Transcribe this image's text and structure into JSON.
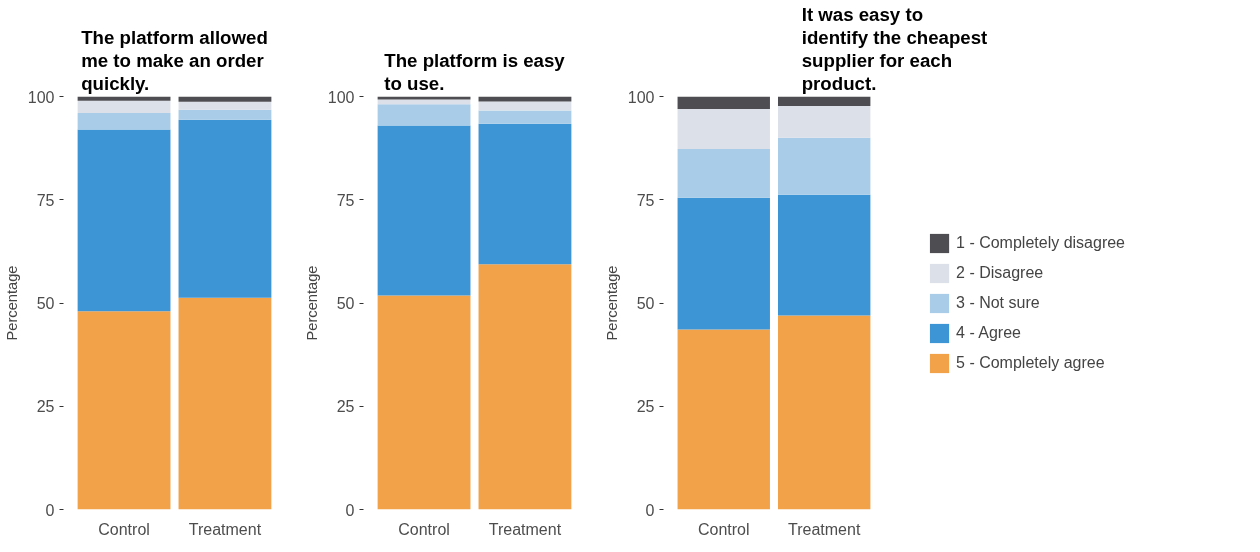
{
  "chart_data": [
    {
      "type": "bar",
      "title": "The platform allowed me to make an order quickly.",
      "ylabel": "Percentage",
      "categories": [
        "Control",
        "Treatment"
      ],
      "stacked": true,
      "ylim": [
        0,
        100
      ],
      "yticks": [
        0,
        25,
        50,
        75,
        100
      ],
      "grid": false,
      "series": [
        {
          "color": "#f2a34a",
          "values": [
            48,
            51.3
          ]
        },
        {
          "color": "#3e95d5",
          "values": [
            44,
            43.1
          ]
        },
        {
          "color": "#a9cde8",
          "values": [
            4,
            2.4
          ]
        },
        {
          "color": "#dce1e9",
          "values": [
            3,
            1.9
          ]
        },
        {
          "color": "#4d4d52",
          "values": [
            1,
            1.3
          ]
        }
      ]
    },
    {
      "type": "bar",
      "title": "The platform is easy to use.",
      "ylabel": "Percentage",
      "categories": [
        "Control",
        "Treatment"
      ],
      "stacked": true,
      "ylim": [
        0,
        100
      ],
      "yticks": [
        0,
        25,
        50,
        75,
        100
      ],
      "grid": false,
      "series": [
        {
          "color": "#f2a34a",
          "values": [
            51.8,
            59.4
          ]
        },
        {
          "color": "#3e95d5",
          "values": [
            41.2,
            34.0
          ]
        },
        {
          "color": "#a9cde8",
          "values": [
            5.1,
            3.2
          ]
        },
        {
          "color": "#dce1e9",
          "values": [
            1.2,
            2.2
          ]
        },
        {
          "color": "#4d4d52",
          "values": [
            0.7,
            1.2
          ]
        }
      ]
    },
    {
      "type": "bar",
      "title": "It was easy to identify the cheapest supplier for each product.",
      "ylabel": "Percentage",
      "categories": [
        "Control",
        "Treatment"
      ],
      "stacked": true,
      "ylim": [
        0,
        100
      ],
      "yticks": [
        0,
        25,
        50,
        75,
        100
      ],
      "grid": false,
      "legend": "right",
      "series": [
        {
          "name": "5 - Completely agree",
          "color": "#f2a34a",
          "values": [
            43.6,
            47.0
          ]
        },
        {
          "name": "4 - Agree",
          "color": "#3e95d5",
          "values": [
            31.9,
            29.2
          ]
        },
        {
          "name": "3 - Not sure",
          "color": "#a9cde8",
          "values": [
            11.8,
            13.8
          ]
        },
        {
          "name": "2 - Disagree",
          "color": "#dce1e9",
          "values": [
            9.7,
            7.7
          ]
        },
        {
          "name": "1 - Completely disagree",
          "color": "#4d4d52",
          "values": [
            3.0,
            2.3
          ]
        }
      ]
    }
  ]
}
